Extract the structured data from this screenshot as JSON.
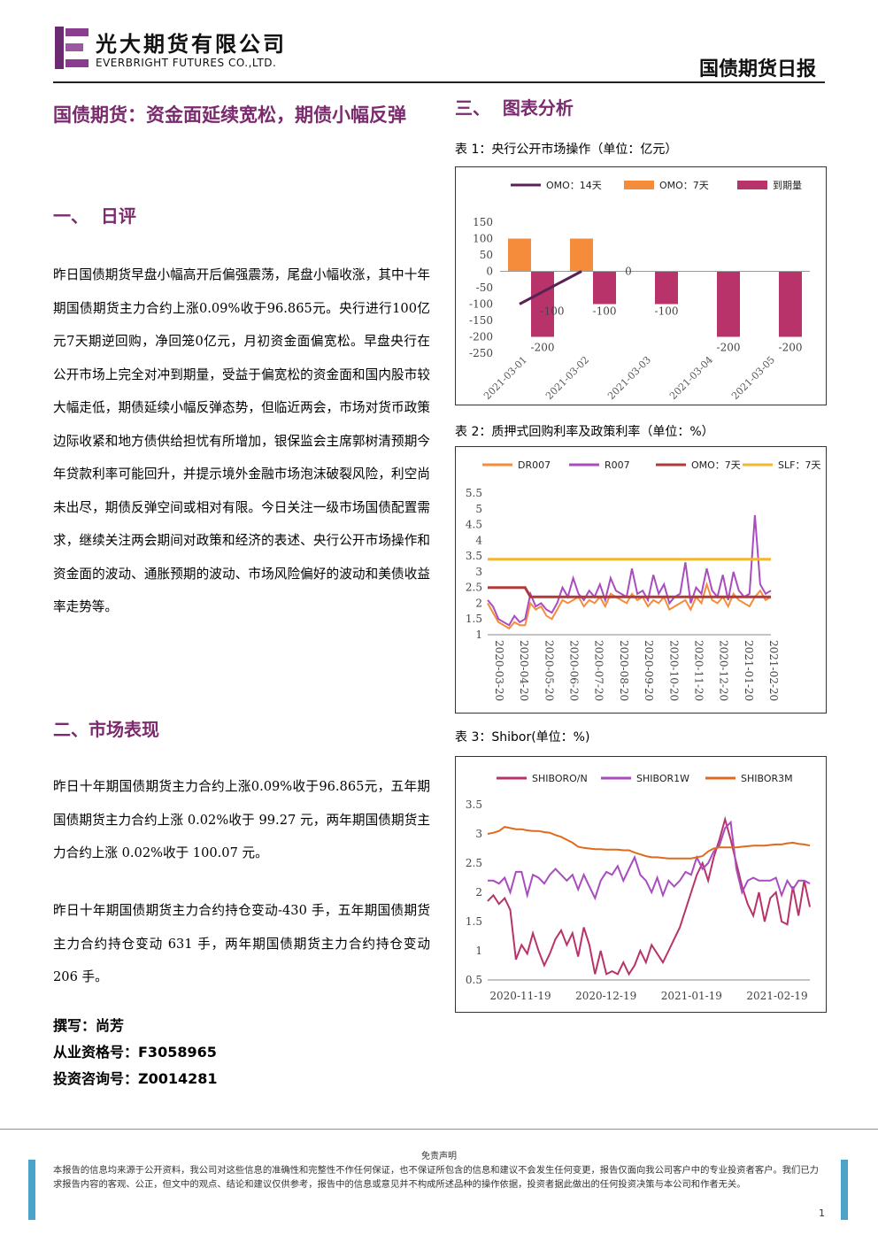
{
  "header": {
    "company_cn": "光大期货有限公司",
    "company_en": "EVERBRIGHT FUTURES CO.,LTD.",
    "report_title": "国债期货日报"
  },
  "article": {
    "title": "国债期货：资金面延续宽松，期债小幅反弹",
    "section1_heading": "一、  日评",
    "section1_para": "昨日国债期货早盘小幅高开后偏强震荡，尾盘小幅收涨，其中十年期国债期货主力合约上涨0.09%收于96.865元。央行进行100亿元7天期逆回购，净回笼0亿元，月初资金面偏宽松。早盘央行在公开市场上完全对冲到期量，受益于偏宽松的资金面和国内股市较大幅走低，期债延续小幅反弹态势，但临近两会，市场对货币政策边际收紧和地方债供给担忧有所增加，银保监会主席郭树清预期今年贷款利率可能回升，并提示境外金融市场泡沫破裂风险，利空尚未出尽，期债反弹空间或相对有限。今日关注一级市场国债配置需求，继续关注两会期间对政策和经济的表述、央行公开市场操作和资金面的波动、通胀预期的波动、市场风险偏好的波动和美债收益率走势等。",
    "section2_heading": "二、市场表现",
    "section2_para1": "昨日十年期国债期货主力合约上涨0.09%收于96.865元，五年期国债期货主力合约上涨 0.02%收于 99.27 元，两年期国债期货主力合约上涨 0.02%收于 100.07 元。",
    "section2_para2": "昨日十年期国债期货主力合约持仓变动-430 手，五年期国债期货主力合约持仓变动 631 手，两年期国债期货主力合约持仓变动 206 手。",
    "author_line": "撰写：尚芳",
    "license_line": "从业资格号：F3058965",
    "advisory_line": "投资咨询号：Z0014281",
    "section3_heading": "三、  图表分析"
  },
  "charts": {
    "caption1": "表 1：央行公开市场操作（单位：亿元）",
    "caption2": "表 2：质押式回购利率及政策利率（单位：%）",
    "caption3": "表 3：Shibor(单位：%)"
  },
  "chart_data": [
    {
      "type": "bar",
      "categories": [
        "2021-03-01",
        "2021-03-02",
        "2021-03-03",
        "2021-03-04",
        "2021-03-05"
      ],
      "series": [
        {
          "name": "OMO：14天",
          "kind": "line",
          "color": "#5b2155",
          "values": [
            -100,
            0,
            null,
            null,
            null
          ]
        },
        {
          "name": "OMO：7天",
          "kind": "bar",
          "color": "#f48c3c",
          "values": [
            100,
            100,
            0,
            0,
            0
          ]
        },
        {
          "name": "到期量",
          "kind": "bar",
          "color": "#b8336a",
          "values": [
            -200,
            -100,
            -100,
            -200,
            -200
          ]
        }
      ],
      "value_labels": [
        "-200",
        "-100",
        "-100",
        "0",
        "-100",
        "-200",
        "-200"
      ],
      "ylim": [
        -250,
        150
      ],
      "yticks": [
        "150",
        "100",
        "50",
        "0",
        "-50",
        "-100",
        "-150",
        "-200",
        "-250"
      ],
      "legend": "top"
    },
    {
      "type": "line",
      "x_ticks": [
        "2020-03-20",
        "2020-04-20",
        "2020-05-20",
        "2020-06-20",
        "2020-07-20",
        "2020-08-20",
        "2020-09-20",
        "2020-10-20",
        "2020-11-20",
        "2020-12-20",
        "2021-01-20",
        "2021-02-20"
      ],
      "yticks": [
        "5.5",
        "5",
        "4.5",
        "4",
        "3.5",
        "3",
        "2.5",
        "2",
        "1.5",
        "1"
      ],
      "ylim": [
        1,
        5.5
      ],
      "series": [
        {
          "name": "DR007",
          "color": "#f48c3c",
          "values": [
            2.0,
            1.7,
            1.4,
            1.3,
            1.2,
            1.4,
            1.3,
            1.3,
            2.0,
            1.8,
            1.9,
            1.6,
            1.5,
            1.8,
            2.1,
            2.0,
            2.1,
            2.2,
            1.9,
            2.1,
            2.0,
            2.2,
            1.9,
            2.3,
            2.2,
            2.1,
            2.0,
            2.3,
            2.1,
            2.2,
            1.9,
            2.1,
            2.0,
            2.2,
            1.8,
            1.9,
            2.0,
            2.1,
            1.8,
            2.2,
            2.0,
            2.6,
            2.1,
            2.0,
            2.2,
            1.9,
            2.3,
            2.1,
            2.0,
            1.9,
            2.2,
            2.4,
            2.1,
            2.2
          ]
        },
        {
          "name": "R007",
          "color": "#a94cbf",
          "values": [
            2.1,
            1.9,
            1.5,
            1.4,
            1.3,
            1.6,
            1.4,
            1.5,
            2.3,
            1.9,
            2.0,
            1.8,
            1.7,
            2.0,
            2.5,
            2.2,
            2.8,
            2.3,
            2.1,
            2.4,
            2.2,
            2.6,
            2.1,
            2.8,
            2.4,
            2.3,
            2.2,
            3.1,
            2.3,
            2.4,
            2.1,
            2.9,
            2.3,
            2.6,
            2.0,
            2.2,
            2.3,
            3.3,
            2.0,
            2.5,
            2.3,
            3.1,
            2.4,
            2.2,
            2.9,
            2.1,
            3.0,
            2.4,
            2.2,
            2.3,
            4.8,
            2.6,
            2.3,
            2.4
          ]
        },
        {
          "name": "OMO：7天",
          "color": "#b03a3a",
          "values": [
            2.5,
            2.5,
            2.5,
            2.5,
            2.5,
            2.5,
            2.5,
            2.5,
            2.2,
            2.2,
            2.2,
            2.2,
            2.2,
            2.2,
            2.2,
            2.2,
            2.2,
            2.2,
            2.2,
            2.2,
            2.2,
            2.2,
            2.2,
            2.2,
            2.2,
            2.2,
            2.2,
            2.2,
            2.2,
            2.2,
            2.2,
            2.2,
            2.2,
            2.2,
            2.2,
            2.2,
            2.2,
            2.2,
            2.2,
            2.2,
            2.2,
            2.2,
            2.2,
            2.2,
            2.2,
            2.2,
            2.2,
            2.2,
            2.2,
            2.2,
            2.2,
            2.2,
            2.2,
            2.2
          ]
        },
        {
          "name": "SLF：7天",
          "color": "#f2b630",
          "values": [
            3.4,
            3.4,
            3.4,
            3.4,
            3.4,
            3.4,
            3.4,
            3.4,
            3.4,
            3.4,
            3.4,
            3.4,
            3.4,
            3.4,
            3.4,
            3.4,
            3.4,
            3.4,
            3.4,
            3.4,
            3.4,
            3.4,
            3.4,
            3.4,
            3.4,
            3.4,
            3.4,
            3.4,
            3.4,
            3.4,
            3.4,
            3.4,
            3.4,
            3.4,
            3.4,
            3.4,
            3.4,
            3.4,
            3.4,
            3.4,
            3.4,
            3.4,
            3.4,
            3.4,
            3.4,
            3.4,
            3.4,
            3.4,
            3.4,
            3.4,
            3.4,
            3.4,
            3.4,
            3.4
          ]
        }
      ],
      "legend": "top"
    },
    {
      "type": "line",
      "x_ticks": [
        "2020-11-19",
        "2020-12-19",
        "2021-01-19",
        "2021-02-19"
      ],
      "yticks": [
        "3.5",
        "3",
        "2.5",
        "2",
        "1.5",
        "1",
        "0.5"
      ],
      "ylim": [
        0.5,
        3.5
      ],
      "series": [
        {
          "name": "SHIBORO/N",
          "color": "#b8336a",
          "values": [
            1.85,
            1.95,
            1.8,
            1.9,
            1.7,
            0.85,
            1.1,
            0.95,
            1.3,
            1.0,
            0.75,
            0.95,
            1.2,
            1.35,
            1.1,
            1.3,
            0.9,
            1.4,
            1.1,
            0.6,
            1.0,
            0.6,
            0.65,
            0.6,
            0.8,
            0.6,
            0.75,
            1.0,
            0.8,
            1.1,
            0.95,
            0.8,
            1.0,
            1.2,
            1.4,
            1.7,
            2.0,
            2.3,
            2.5,
            2.2,
            2.6,
            2.9,
            3.25,
            2.9,
            2.5,
            2.1,
            1.8,
            1.6,
            2.0,
            1.5,
            1.9,
            2.0,
            1.5,
            1.45,
            2.1,
            1.6,
            2.2,
            1.75
          ]
        },
        {
          "name": "SHIBOR1W",
          "color": "#a94cbf",
          "values": [
            2.2,
            2.2,
            2.15,
            2.25,
            2.0,
            2.35,
            2.35,
            1.95,
            2.3,
            2.25,
            2.15,
            2.3,
            2.4,
            2.3,
            2.2,
            2.3,
            2.05,
            2.3,
            2.1,
            1.9,
            2.2,
            2.35,
            2.3,
            2.45,
            2.2,
            2.4,
            2.6,
            2.3,
            2.2,
            2.0,
            2.25,
            1.95,
            2.2,
            2.1,
            2.2,
            2.35,
            2.3,
            2.6,
            2.4,
            2.5,
            2.7,
            2.8,
            3.1,
            3.2,
            2.4,
            2.0,
            2.2,
            2.25,
            2.2,
            2.2,
            2.2,
            2.25,
            1.95,
            2.2,
            2.05,
            2.2,
            2.2,
            2.15
          ]
        },
        {
          "name": "SHIBOR3M",
          "color": "#e06a1c",
          "values": [
            3.0,
            3.02,
            3.05,
            3.12,
            3.1,
            3.08,
            3.08,
            3.06,
            3.05,
            3.05,
            3.03,
            3.02,
            2.98,
            2.95,
            2.9,
            2.85,
            2.78,
            2.76,
            2.75,
            2.74,
            2.74,
            2.73,
            2.73,
            2.73,
            2.72,
            2.72,
            2.68,
            2.65,
            2.62,
            2.6,
            2.6,
            2.59,
            2.58,
            2.58,
            2.58,
            2.58,
            2.58,
            2.6,
            2.62,
            2.7,
            2.75,
            2.77,
            2.77,
            2.77,
            2.77,
            2.78,
            2.79,
            2.8,
            2.8,
            2.8,
            2.81,
            2.82,
            2.82,
            2.84,
            2.85,
            2.83,
            2.82,
            2.8
          ]
        }
      ],
      "legend": "top"
    }
  ],
  "footer": {
    "disclaimer_title": "免责声明",
    "disclaimer": "本报告的信息均来源于公开资料，我公司对这些信息的准确性和完整性不作任何保证，也不保证所包含的信息和建议不会发生任何变更，报告仅面向我公司客户中的专业投资者客户。我们已力求报告内容的客观、公正，但文中的观点、结论和建议仅供参考，报告中的信息或意见并不构成所述品种的操作依据，投资者据此做出的任何投资决策与本公司和作者无关。",
    "page_number": "1"
  }
}
